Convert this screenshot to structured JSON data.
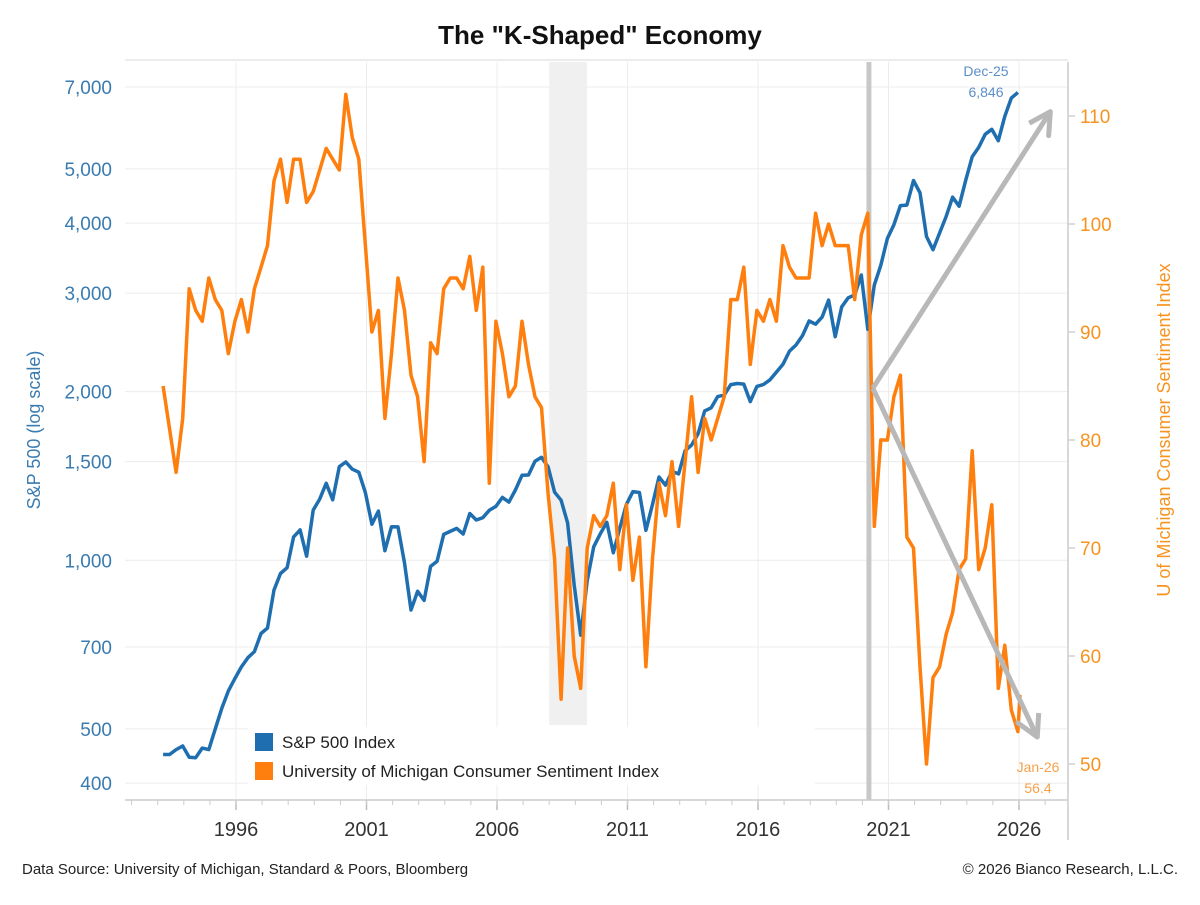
{
  "chart_data": {
    "type": "line",
    "title": "The \"K-Shaped\" Economy",
    "source": "Data Source: University of Michigan, Standard & Poors, Bloomberg",
    "copyright": "© 2026 Bianco Research, L.L.C.",
    "x_axis": {
      "ticks": [
        1996,
        2001,
        2006,
        2011,
        2016,
        2021,
        2026
      ],
      "range": [
        1991.75,
        2027.9
      ],
      "minor_ticks": "yearly"
    },
    "y_left": {
      "label": "S&P 500 (log scale)",
      "scale": "log",
      "range": [
        373,
        7770
      ],
      "ticks": [
        400,
        500,
        700,
        1000,
        1500,
        2000,
        3000,
        4000,
        5000,
        7000
      ],
      "color": "#3a7bb0"
    },
    "y_right": {
      "label": "U of Michigan Consumer Sentiment Index",
      "scale": "linear",
      "range": [
        46.7,
        115
      ],
      "ticks": [
        50,
        60,
        70,
        80,
        90,
        100,
        110
      ],
      "color": "#f7931e"
    },
    "grid": true,
    "legend": {
      "placement": "bottom-left",
      "entries": [
        "S&P 500 Index",
        "University of Michigan Consumer Sentiment Index"
      ]
    },
    "series": [
      {
        "name": "S&P 500 Index",
        "axis": "left",
        "color": "#1f6fb0",
        "frequency": "quarterly",
        "values": {
          "1993": [
            450,
            450,
            459,
            466
          ],
          "1994": [
            445,
            444,
            462,
            459
          ],
          "1995": [
            500,
            544,
            584,
            615
          ],
          "1996": [
            645,
            670,
            687,
            740
          ],
          "1997": [
            757,
            885,
            947,
            970
          ],
          "1998": [
            1101,
            1133,
            1017,
            1229
          ],
          "1999": [
            1286,
            1372,
            1282,
            1469
          ],
          "2000": [
            1498,
            1454,
            1436,
            1320
          ],
          "2001": [
            1160,
            1224,
            1040,
            1148
          ],
          "2002": [
            1147,
            989,
            815,
            880
          ],
          "2003": [
            848,
            975,
            996,
            1112
          ],
          "2004": [
            1126,
            1140,
            1114,
            1212
          ],
          "2005": [
            1180,
            1191,
            1228,
            1248
          ],
          "2006": [
            1295,
            1270,
            1335,
            1418
          ],
          "2007": [
            1420,
            1503,
            1527,
            1468
          ],
          "2008": [
            1323,
            1280,
            1166,
            903
          ],
          "2009": [
            735,
            919,
            1057,
            1115
          ],
          "2010": [
            1169,
            1031,
            1141,
            1258
          ],
          "2011": [
            1326,
            1321,
            1131,
            1258
          ],
          "2012": [
            1408,
            1362,
            1441,
            1426
          ],
          "2013": [
            1569,
            1606,
            1682,
            1848
          ],
          "2014": [
            1872,
            1960,
            1972,
            2059
          ],
          "2015": [
            2068,
            2063,
            1920,
            2044
          ],
          "2016": [
            2060,
            2099,
            2168,
            2239
          ],
          "2017": [
            2363,
            2423,
            2519,
            2674
          ],
          "2018": [
            2640,
            2718,
            2914,
            2507
          ],
          "2019": [
            2834,
            2942,
            2977,
            3231
          ],
          "2020": [
            2585,
            3100,
            3363,
            3756
          ],
          "2021": [
            3973,
            4298,
            4308,
            4766
          ],
          "2022": [
            4530,
            3785,
            3586,
            3840
          ],
          "2023": [
            4109,
            4450,
            4288,
            4770
          ],
          "2024": [
            5254,
            5460,
            5762,
            5882
          ],
          "2025": [
            5612,
            6205,
            6688,
            6846
          ]
        }
      },
      {
        "name": "University of Michigan Consumer Sentiment Index",
        "axis": "right",
        "color": "#ff7f0e",
        "frequency": "quarterly",
        "values": {
          "1993": [
            85,
            81,
            77,
            82
          ],
          "1994": [
            94,
            92,
            91,
            95
          ],
          "1995": [
            93,
            92,
            88,
            91
          ],
          "1996": [
            93,
            90,
            94,
            96
          ],
          "1997": [
            98,
            104,
            106,
            102
          ],
          "1998": [
            106,
            106,
            102,
            103
          ],
          "1999": [
            105,
            107,
            106,
            105
          ],
          "2000": [
            112,
            108,
            106,
            98
          ],
          "2001": [
            90,
            92,
            82,
            88
          ],
          "2002": [
            95,
            92,
            86,
            84
          ],
          "2003": [
            78,
            89,
            88,
            94
          ],
          "2004": [
            95,
            95,
            94,
            97
          ],
          "2005": [
            92,
            96,
            76,
            91
          ],
          "2006": [
            88,
            84,
            85,
            91
          ],
          "2007": [
            87,
            84,
            83,
            75
          ],
          "2008": [
            69,
            56,
            70,
            60
          ],
          "2009": [
            57,
            70,
            73,
            72
          ],
          "2010": [
            73,
            76,
            68,
            74
          ],
          "2011": [
            67,
            71,
            59,
            69
          ],
          "2012": [
            76,
            73,
            78,
            72
          ],
          "2013": [
            78,
            84,
            77,
            82
          ],
          "2014": [
            80,
            82,
            84,
            93
          ],
          "2015": [
            93,
            96,
            87,
            92
          ],
          "2016": [
            91,
            93,
            91,
            98
          ],
          "2017": [
            96,
            95,
            95,
            95
          ],
          "2018": [
            101,
            98,
            100,
            98
          ],
          "2019": [
            98,
            98,
            93,
            99
          ],
          "2020": [
            101,
            72,
            80,
            80
          ],
          "2021": [
            84,
            86,
            71,
            70
          ],
          "2022": [
            59,
            50,
            58,
            59
          ],
          "2023": [
            62,
            64,
            68,
            69
          ],
          "2024": [
            79,
            68,
            70,
            74
          ],
          "2025": [
            57,
            61,
            55,
            53
          ],
          "2026": [
            56.4
          ]
        }
      }
    ],
    "annotations": [
      {
        "text": [
          "Dec-25",
          "6,846"
        ],
        "series": "S&P 500 Index",
        "date": "Dec-25",
        "value": 6846
      },
      {
        "text": [
          "Jan-26",
          "56.4"
        ],
        "series": "University of Michigan Consumer Sentiment Index",
        "date": "Jan-26",
        "value": 56.4
      }
    ],
    "shaded_periods": [
      {
        "from": 2008.0,
        "to": 2009.45,
        "color": "#f0f0f0"
      }
    ],
    "vertical_lines": [
      {
        "x": 2020.25,
        "color": "#c8c8c8"
      }
    ],
    "arrows": [
      {
        "from": [
          2020.4,
          84.8
        ],
        "to": [
          2027.2,
          110.4
        ],
        "axis": "right",
        "color": "#b8b8b8"
      },
      {
        "from": [
          2020.4,
          84.8
        ],
        "to": [
          2026.7,
          52.5
        ],
        "axis": "right",
        "color": "#b8b8b8"
      }
    ]
  }
}
